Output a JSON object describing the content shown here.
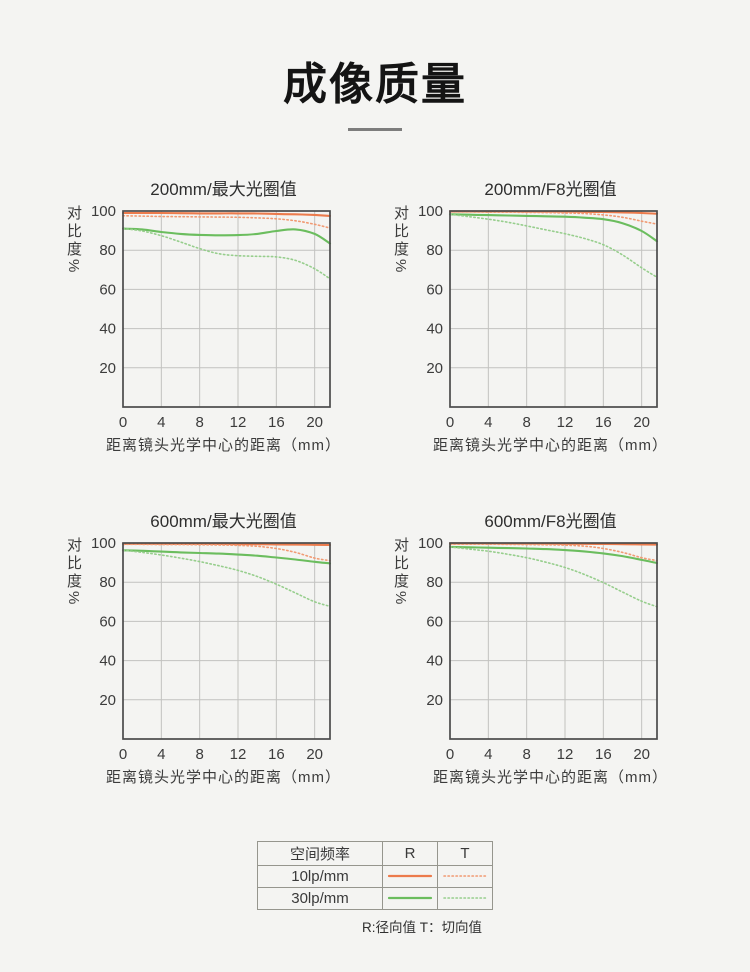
{
  "page": {
    "title": "成像质量",
    "background": "#f4f4f2"
  },
  "style": {
    "axis_color": "#4b4b4b",
    "grid_color": "#c2c2bf",
    "tick_text_color": "#3c3c3c",
    "accent_orange": "#EC7B4C",
    "accent_orange_light": "#F19A73",
    "accent_green": "#6BBD5E",
    "accent_green_light": "#97CE8D"
  },
  "chart_data": [
    {
      "type": "line",
      "title": "200mm/最大光圈值",
      "xlabel": "距离镜头光学中心的距离（mm）",
      "ylabel": "对比度%",
      "xlim": [
        0,
        21.6
      ],
      "ylim": [
        0,
        100
      ],
      "xticks": [
        0,
        4,
        8,
        12,
        16,
        20
      ],
      "yticks": [
        20,
        40,
        60,
        80,
        100
      ],
      "grid": true,
      "x": [
        0,
        2,
        4,
        6,
        8,
        10,
        12,
        14,
        16,
        18,
        20,
        21.6
      ],
      "series": [
        {
          "name": "10lp/mm R",
          "style": "solid",
          "color": "#EC7B4C",
          "values": [
            99,
            99,
            99,
            98.9,
            98.8,
            98.8,
            98.8,
            98.7,
            98.5,
            98.3,
            98,
            97.5
          ]
        },
        {
          "name": "10lp/mm T",
          "style": "dotted",
          "color": "#F19A73",
          "values": [
            97.6,
            97.4,
            97.2,
            97.1,
            97,
            96.9,
            96.8,
            96.5,
            96,
            95,
            93.2,
            91.3
          ]
        },
        {
          "name": "30lp/mm R",
          "style": "solid",
          "color": "#6BBD5E",
          "values": [
            91,
            90.6,
            89.3,
            88.3,
            87.8,
            87.6,
            87.7,
            88.3,
            89.8,
            90.6,
            88.3,
            83.4
          ]
        },
        {
          "name": "30lp/mm T",
          "style": "dotted",
          "color": "#97CE8D",
          "values": [
            91,
            89.8,
            87.4,
            84.2,
            80.8,
            78.2,
            77.2,
            76.9,
            76.6,
            74.8,
            70.5,
            65.4
          ]
        }
      ]
    },
    {
      "type": "line",
      "title": "200mm/F8光圈值",
      "xlabel": "距离镜头光学中心的距离（mm）",
      "ylabel": "对比度%",
      "xlim": [
        0,
        21.6
      ],
      "ylim": [
        0,
        100
      ],
      "xticks": [
        0,
        4,
        8,
        12,
        16,
        20
      ],
      "yticks": [
        20,
        40,
        60,
        80,
        100
      ],
      "grid": true,
      "x": [
        0,
        2,
        4,
        6,
        8,
        10,
        12,
        14,
        16,
        18,
        20,
        21.6
      ],
      "series": [
        {
          "name": "10lp/mm R",
          "style": "solid",
          "color": "#EC7B4C",
          "values": [
            99.8,
            99.8,
            99.8,
            99.8,
            99.7,
            99.7,
            99.7,
            99.6,
            99.5,
            99.3,
            99,
            98.6
          ]
        },
        {
          "name": "10lp/mm T",
          "style": "dotted",
          "color": "#F19A73",
          "values": [
            99.5,
            99.5,
            99.4,
            99.4,
            99.3,
            99.2,
            99,
            98.7,
            98,
            96.8,
            94.8,
            93.3
          ]
        },
        {
          "name": "30lp/mm R",
          "style": "solid",
          "color": "#6BBD5E",
          "values": [
            98.3,
            98.1,
            97.9,
            97.7,
            97.5,
            97.3,
            97.1,
            96.6,
            95.8,
            93.8,
            89.8,
            84.6
          ]
        },
        {
          "name": "30lp/mm T",
          "style": "dotted",
          "color": "#97CE8D",
          "values": [
            98.3,
            97.1,
            95.8,
            94.3,
            92.4,
            90.4,
            88.4,
            86,
            82.8,
            77.6,
            71,
            66.2
          ]
        }
      ]
    },
    {
      "type": "line",
      "title": "600mm/最大光圈值",
      "xlabel": "距离镜头光学中心的距离（mm）",
      "ylabel": "对比度%",
      "xlim": [
        0,
        21.6
      ],
      "ylim": [
        0,
        100
      ],
      "xticks": [
        0,
        4,
        8,
        12,
        16,
        20
      ],
      "yticks": [
        20,
        40,
        60,
        80,
        100
      ],
      "grid": true,
      "x": [
        0,
        2,
        4,
        6,
        8,
        10,
        12,
        14,
        16,
        18,
        20,
        21.6
      ],
      "series": [
        {
          "name": "10lp/mm R",
          "style": "solid",
          "color": "#EC7B4C",
          "values": [
            99.6,
            99.6,
            99.6,
            99.5,
            99.5,
            99.5,
            99.4,
            99.4,
            99.3,
            99.2,
            99.1,
            99
          ]
        },
        {
          "name": "10lp/mm T",
          "style": "dotted",
          "color": "#F19A73",
          "values": [
            99.3,
            99.3,
            99.2,
            99.2,
            99.1,
            99,
            98.8,
            98.3,
            97.2,
            95.2,
            92.3,
            91
          ]
        },
        {
          "name": "30lp/mm R",
          "style": "solid",
          "color": "#6BBD5E",
          "values": [
            96.3,
            96,
            95.6,
            95.2,
            94.9,
            94.6,
            94.1,
            93.5,
            92.6,
            91.6,
            90.4,
            89.6
          ]
        },
        {
          "name": "30lp/mm T",
          "style": "dotted",
          "color": "#97CE8D",
          "values": [
            96.3,
            95.2,
            93.9,
            92.3,
            90.5,
            88.4,
            86,
            82.9,
            79,
            74.5,
            70,
            67.7
          ]
        }
      ]
    },
    {
      "type": "line",
      "title": "600mm/F8光圈值",
      "xlabel": "距离镜头光学中心的距离（mm）",
      "ylabel": "对比度%",
      "xlim": [
        0,
        21.6
      ],
      "ylim": [
        0,
        100
      ],
      "xticks": [
        0,
        4,
        8,
        12,
        16,
        20
      ],
      "yticks": [
        20,
        40,
        60,
        80,
        100
      ],
      "grid": true,
      "x": [
        0,
        2,
        4,
        6,
        8,
        10,
        12,
        14,
        16,
        18,
        20,
        21.6
      ],
      "series": [
        {
          "name": "10lp/mm R",
          "style": "solid",
          "color": "#EC7B4C",
          "values": [
            99.8,
            99.8,
            99.8,
            99.7,
            99.7,
            99.7,
            99.6,
            99.6,
            99.5,
            99.4,
            99.3,
            99.2
          ]
        },
        {
          "name": "10lp/mm T",
          "style": "dotted",
          "color": "#F19A73",
          "values": [
            99.4,
            99.4,
            99.4,
            99.3,
            99.2,
            99.1,
            98.9,
            98.4,
            97.2,
            95.2,
            92.5,
            91
          ]
        },
        {
          "name": "30lp/mm R",
          "style": "solid",
          "color": "#6BBD5E",
          "values": [
            98,
            97.8,
            97.6,
            97.4,
            97.2,
            96.9,
            96.4,
            95.7,
            94.7,
            93.3,
            91.4,
            89.8
          ]
        },
        {
          "name": "30lp/mm T",
          "style": "dotted",
          "color": "#97CE8D",
          "values": [
            98,
            96.9,
            95.8,
            94.3,
            92.5,
            90.2,
            87.5,
            84,
            79.8,
            75,
            70.3,
            67.5
          ]
        }
      ]
    }
  ],
  "legend": {
    "header": [
      "空间频率",
      "R",
      "T"
    ],
    "rows": [
      {
        "label": "10lp/mm",
        "r_color": "#EC7B4C",
        "t_color": "#F19A73"
      },
      {
        "label": "30lp/mm",
        "r_color": "#6BBD5E",
        "t_color": "#97CE8D"
      }
    ],
    "note": "R:径向值 T：切向值"
  }
}
